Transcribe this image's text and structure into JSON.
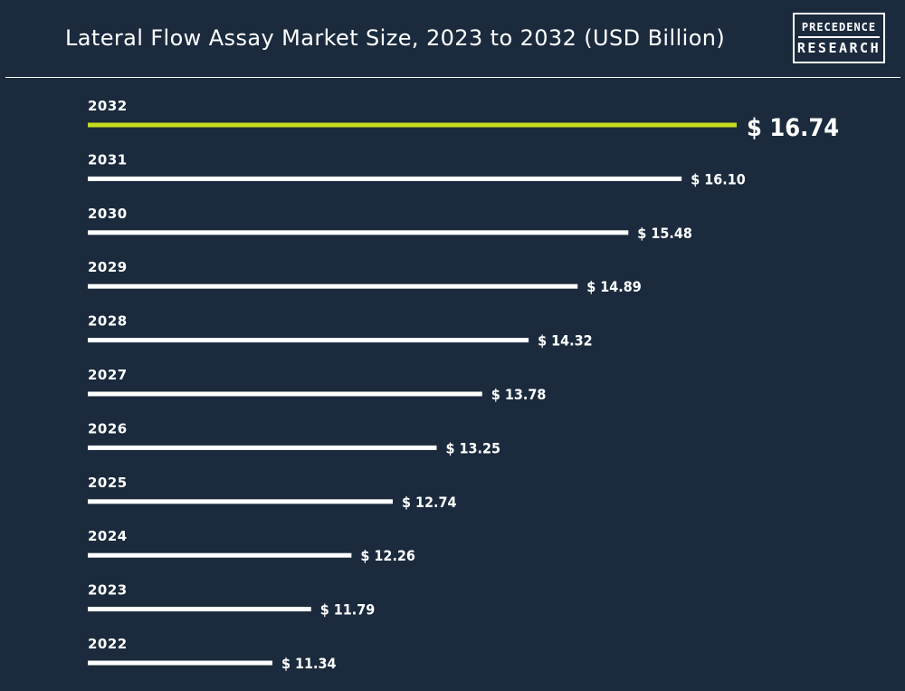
{
  "header": {
    "title": "Lateral Flow Assay Market Size, 2023 to 2032 (USD Billion)",
    "logo_line1": "PRECEDENCE",
    "logo_line2": "RESEARCH"
  },
  "colors": {
    "background": "#1b2b3d",
    "bar": "#ffffff",
    "highlight_bar": "#c8dc1e",
    "text": "#ffffff"
  },
  "chart_data": {
    "type": "bar",
    "orientation": "horizontal",
    "title": "Lateral Flow Assay Market Size, 2023 to 2032 (USD Billion)",
    "categories": [
      "2032",
      "2031",
      "2030",
      "2029",
      "2028",
      "2027",
      "2026",
      "2025",
      "2024",
      "2023",
      "2022"
    ],
    "values": [
      16.74,
      16.1,
      15.48,
      14.89,
      14.32,
      13.78,
      13.25,
      12.74,
      12.26,
      11.79,
      11.34
    ],
    "value_labels": [
      "$ 16.74",
      "$ 16.10",
      "$ 15.48",
      "$ 14.89",
      "$ 14.32",
      "$ 13.78",
      "$ 13.25",
      "$ 12.74",
      "$ 12.26",
      "$ 11.79",
      "$ 11.34"
    ],
    "highlight_category": "2032",
    "xlabel": "",
    "ylabel": "",
    "grid": false,
    "legend": "none"
  }
}
